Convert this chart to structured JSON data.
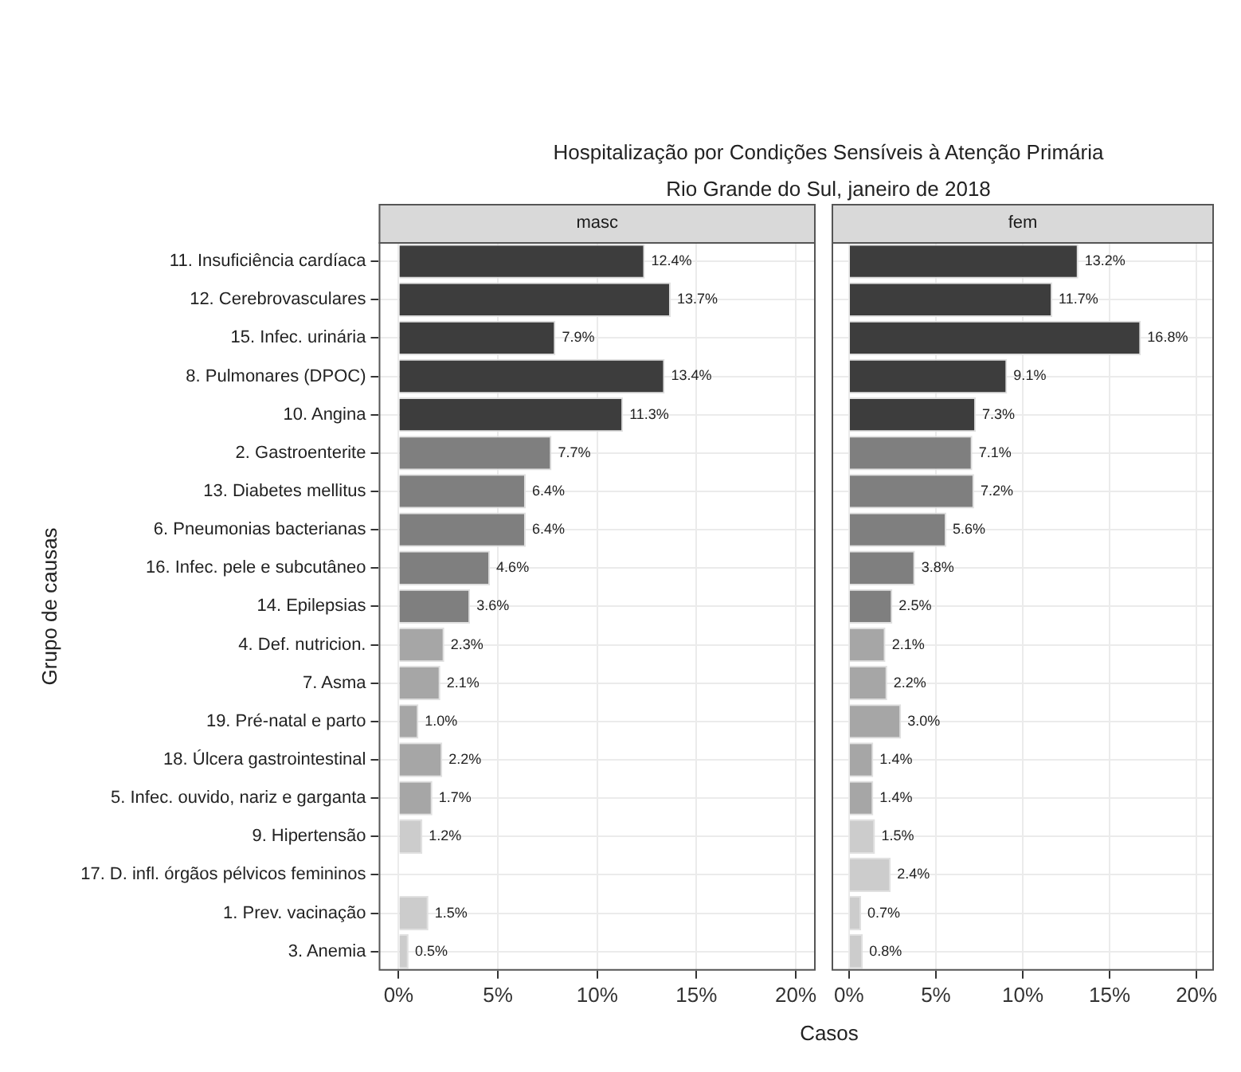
{
  "chart_data": [
    {
      "type": "bar",
      "orientation": "horizontal",
      "title": "Hospitalização por Condições Sensíveis à Atenção Primária",
      "subtitle": "Rio Grande do Sul, janeiro de 2018",
      "ylabel": "Grupo de causas",
      "xlabel": "Casos",
      "annotations": [
        "masc"
      ],
      "grid": true,
      "categories": [
        "11. Insuficiência cardíaca",
        "12. Cerebrovasculares",
        "15. Infec. urinária",
        "8. Pulmonares (DPOC)",
        "10. Angina",
        "2. Gastroenterite",
        "13. Diabetes mellitus",
        "6. Pneumonias bacterianas",
        "16. Infec. pele e subcutâneo",
        "14. Epilepsias",
        "4. Def. nutricion.",
        "7. Asma",
        "19. Pré-natal e parto",
        "18. Úlcera gastrointestinal",
        "5. Infec. ouvido, nariz e garganta",
        "9. Hipertensão",
        "17. D. infl. órgãos pélvicos femininos",
        "1. Prev. vacinação",
        "3. Anemia"
      ],
      "values": [
        12.4,
        13.7,
        7.9,
        13.4,
        11.3,
        7.7,
        6.4,
        6.4,
        4.6,
        3.6,
        2.3,
        2.1,
        1.0,
        2.2,
        1.7,
        1.2,
        null,
        1.5,
        0.5
      ],
      "value_labels": [
        "12.4%",
        "13.7%",
        "7.9%",
        "13.4%",
        "11.3%",
        "7.7%",
        "6.4%",
        "6.4%",
        "4.6%",
        "3.6%",
        "2.3%",
        "2.1%",
        "1.0%",
        "2.2%",
        "1.7%",
        "1.2%",
        null,
        "1.5%",
        "0.5%"
      ],
      "colors": [
        "#3d3d3d",
        "#3d3d3d",
        "#3d3d3d",
        "#3d3d3d",
        "#3d3d3d",
        "#7f7f7f",
        "#7f7f7f",
        "#7f7f7f",
        "#7f7f7f",
        "#7f7f7f",
        "#a6a6a6",
        "#a6a6a6",
        "#a6a6a6",
        "#a6a6a6",
        "#a6a6a6",
        "#cccccc",
        "#cccccc",
        "#cccccc",
        "#cccccc"
      ],
      "xlim": [
        -1,
        21
      ],
      "xticks": [
        {
          "value": 0,
          "label": "0%"
        },
        {
          "value": 5,
          "label": "5%"
        },
        {
          "value": 10,
          "label": "10%"
        },
        {
          "value": 15,
          "label": "15%"
        },
        {
          "value": 20,
          "label": "20%"
        }
      ]
    },
    {
      "type": "bar",
      "orientation": "horizontal",
      "annotations": [
        "fem"
      ],
      "grid": true,
      "tick_labels": "x",
      "categories": [
        null,
        null,
        null,
        null,
        null,
        null,
        null,
        null,
        null,
        null,
        null,
        null,
        null,
        null,
        null,
        null,
        null,
        null,
        null
      ],
      "values": [
        13.2,
        11.7,
        16.8,
        9.1,
        7.3,
        7.1,
        7.2,
        5.6,
        3.8,
        2.5,
        2.1,
        2.2,
        3.0,
        1.4,
        1.4,
        1.5,
        2.4,
        0.7,
        0.8
      ],
      "value_labels": [
        "13.2%",
        "11.7%",
        "16.8%",
        "9.1%",
        "7.3%",
        "7.1%",
        "7.2%",
        "5.6%",
        "3.8%",
        "2.5%",
        "2.1%",
        "2.2%",
        "3.0%",
        "1.4%",
        "1.4%",
        "1.5%",
        "2.4%",
        "0.7%",
        "0.8%"
      ],
      "colors": [
        "#3d3d3d",
        "#3d3d3d",
        "#3d3d3d",
        "#3d3d3d",
        "#3d3d3d",
        "#7f7f7f",
        "#7f7f7f",
        "#7f7f7f",
        "#7f7f7f",
        "#7f7f7f",
        "#a6a6a6",
        "#a6a6a6",
        "#a6a6a6",
        "#a6a6a6",
        "#a6a6a6",
        "#cccccc",
        "#cccccc",
        "#cccccc",
        "#cccccc"
      ],
      "xlim": [
        -1,
        21
      ],
      "xticks": [
        {
          "value": 0,
          "label": "0%"
        },
        {
          "value": 5,
          "label": "5%"
        },
        {
          "value": 10,
          "label": "10%"
        },
        {
          "value": 15,
          "label": "15%"
        },
        {
          "value": 20,
          "label": "20%"
        }
      ]
    }
  ]
}
